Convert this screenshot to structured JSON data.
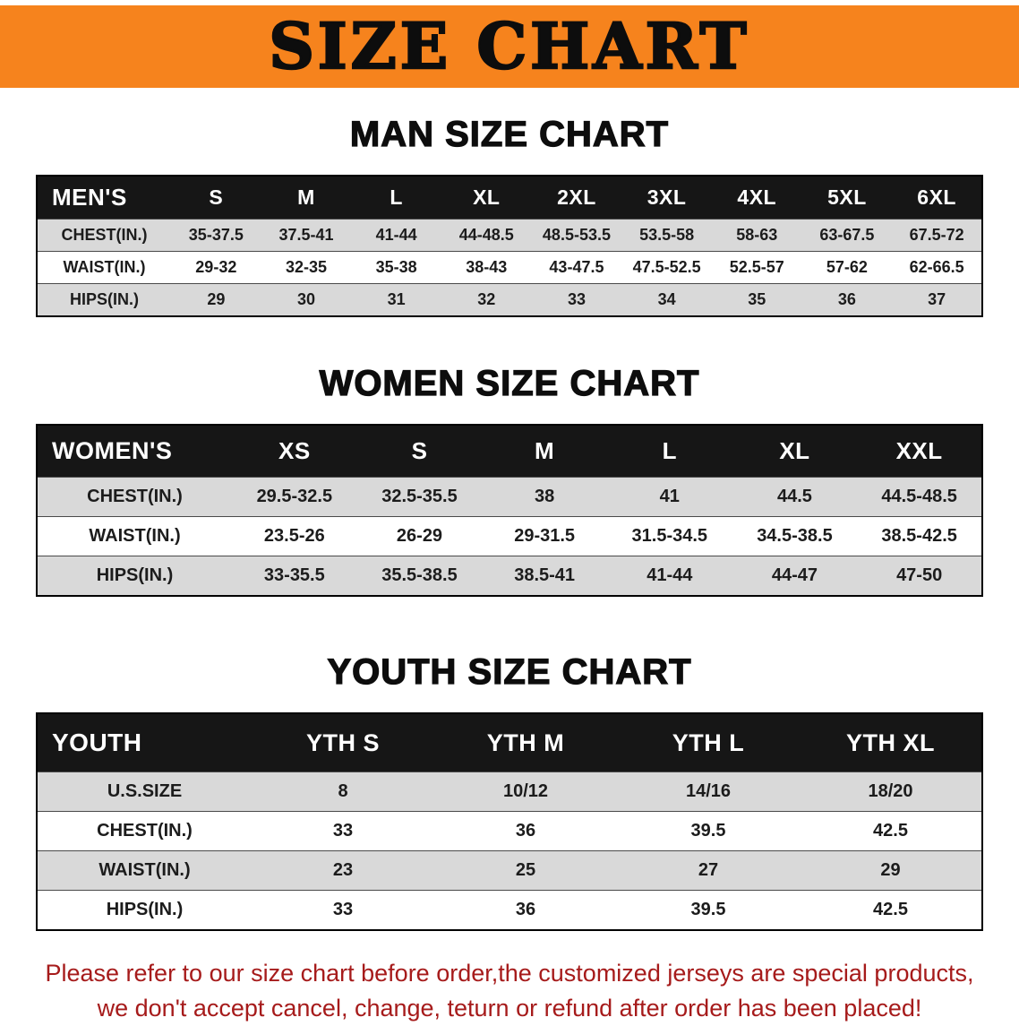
{
  "banner": {
    "title": "SIZE CHART"
  },
  "colors": {
    "banner_bg": "#F6831D",
    "header_bg": "#161616",
    "stripe": "#D9D9D9",
    "footer_red": "#A61B1B"
  },
  "sections": {
    "men": {
      "heading": "MAN SIZE CHART",
      "table": {
        "header": [
          "MEN'S",
          "S",
          "M",
          "L",
          "XL",
          "2XL",
          "3XL",
          "4XL",
          "5XL",
          "6XL"
        ],
        "rows": [
          [
            "CHEST(IN.)",
            "35-37.5",
            "37.5-41",
            "41-44",
            "44-48.5",
            "48.5-53.5",
            "53.5-58",
            "58-63",
            "63-67.5",
            "67.5-72"
          ],
          [
            "WAIST(IN.)",
            "29-32",
            "32-35",
            "35-38",
            "38-43",
            "43-47.5",
            "47.5-52.5",
            "52.5-57",
            "57-62",
            "62-66.5"
          ],
          [
            "HIPS(IN.)",
            "29",
            "30",
            "31",
            "32",
            "33",
            "34",
            "35",
            "36",
            "37"
          ]
        ]
      }
    },
    "women": {
      "heading": "WOMEN SIZE CHART",
      "table": {
        "header": [
          "WOMEN'S",
          "XS",
          "S",
          "M",
          "L",
          "XL",
          "XXL"
        ],
        "rows": [
          [
            "CHEST(IN.)",
            "29.5-32.5",
            "32.5-35.5",
            "38",
            "41",
            "44.5",
            "44.5-48.5"
          ],
          [
            "WAIST(IN.)",
            "23.5-26",
            "26-29",
            "29-31.5",
            "31.5-34.5",
            "34.5-38.5",
            "38.5-42.5"
          ],
          [
            "HIPS(IN.)",
            "33-35.5",
            "35.5-38.5",
            "38.5-41",
            "41-44",
            "44-47",
            "47-50"
          ]
        ]
      }
    },
    "youth": {
      "heading": "YOUTH SIZE CHART",
      "table": {
        "header": [
          "YOUTH",
          "YTH S",
          "YTH M",
          "YTH L",
          "YTH XL"
        ],
        "rows": [
          [
            "U.S.SIZE",
            "8",
            "10/12",
            "14/16",
            "18/20"
          ],
          [
            "CHEST(IN.)",
            "33",
            "36",
            "39.5",
            "42.5"
          ],
          [
            "WAIST(IN.)",
            "23",
            "25",
            "27",
            "29"
          ],
          [
            "HIPS(IN.)",
            "33",
            "36",
            "39.5",
            "42.5"
          ]
        ]
      }
    }
  },
  "footer": {
    "line1": "Please refer to our size chart before order,the customized jerseys are special products,",
    "line2": "we don't accept cancel, change, teturn or refund after order has been placed!"
  }
}
